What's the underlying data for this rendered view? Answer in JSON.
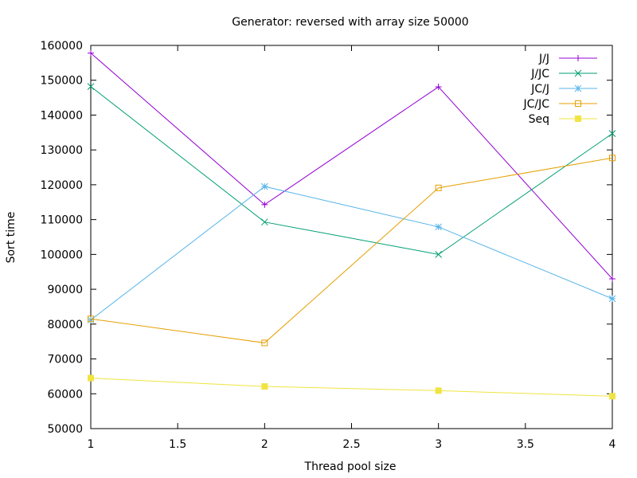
{
  "chart_data": {
    "type": "line",
    "title": "Generator: reversed with array size 50000",
    "xlabel": "Thread pool size",
    "ylabel": "Sort time",
    "xlim": [
      1,
      4
    ],
    "ylim": [
      50000,
      160000
    ],
    "x_ticks": [
      1,
      1.5,
      2,
      2.5,
      3,
      3.5,
      4
    ],
    "x_tick_labels": [
      "1",
      "1.5",
      "2",
      "2.5",
      "3",
      "3.5",
      "4"
    ],
    "y_ticks": [
      50000,
      60000,
      70000,
      80000,
      90000,
      100000,
      110000,
      120000,
      130000,
      140000,
      150000,
      160000
    ],
    "y_tick_labels": [
      "50000",
      "60000",
      "70000",
      "80000",
      "90000",
      "100000",
      "110000",
      "120000",
      "130000",
      "140000",
      "150000",
      "160000"
    ],
    "grid": false,
    "legend_position": "top-right",
    "x": [
      1,
      2,
      3,
      4
    ],
    "series": [
      {
        "name": "J/J",
        "values": [
          157800,
          114300,
          148100,
          93000
        ],
        "color": "#9400d3",
        "marker": "plus"
      },
      {
        "name": "J/JC",
        "values": [
          148200,
          109300,
          100000,
          134700
        ],
        "color": "#009e73",
        "marker": "cross"
      },
      {
        "name": "JC/J",
        "values": [
          81200,
          119500,
          107900,
          87300
        ],
        "color": "#56b4e9",
        "marker": "star"
      },
      {
        "name": "JC/JC",
        "values": [
          81500,
          74600,
          119100,
          127700
        ],
        "color": "#e69f00",
        "marker": "open-square"
      },
      {
        "name": "Seq",
        "values": [
          64500,
          62100,
          60900,
          59300
        ],
        "color": "#f0e442",
        "marker": "filled-square"
      }
    ]
  }
}
